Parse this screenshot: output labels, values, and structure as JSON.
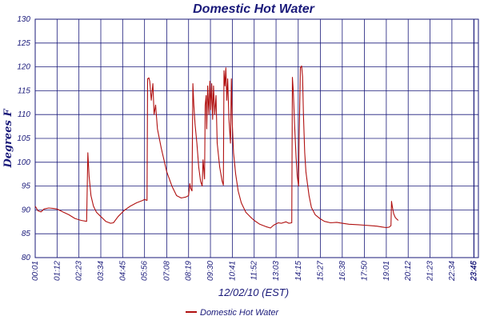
{
  "chart_data": {
    "type": "line",
    "title": "Domestic Hot Water",
    "xlabel": "12/02/10 (EST)",
    "ylabel": "Degrees F",
    "ylim": [
      80,
      130
    ],
    "yticks": [
      80,
      85,
      90,
      95,
      100,
      105,
      110,
      115,
      120,
      125,
      130
    ],
    "xlim_minutes": [
      1,
      1440
    ],
    "xticks": [
      {
        "label": "00:01",
        "m": 1
      },
      {
        "label": "01:12",
        "m": 72
      },
      {
        "label": "02:23",
        "m": 143
      },
      {
        "label": "03:34",
        "m": 214
      },
      {
        "label": "04:45",
        "m": 285
      },
      {
        "label": "05:56",
        "m": 356
      },
      {
        "label": "07:08",
        "m": 428
      },
      {
        "label": "08:19",
        "m": 499
      },
      {
        "label": "09:30",
        "m": 570
      },
      {
        "label": "10:41",
        "m": 641
      },
      {
        "label": "11:52",
        "m": 712
      },
      {
        "label": "13:03",
        "m": 783
      },
      {
        "label": "14:15",
        "m": 855
      },
      {
        "label": "15:27",
        "m": 927
      },
      {
        "label": "16:38",
        "m": 998
      },
      {
        "label": "17:50",
        "m": 1070
      },
      {
        "label": "19:01",
        "m": 1141
      },
      {
        "label": "20:12",
        "m": 1212
      },
      {
        "label": "21:23",
        "m": 1283
      },
      {
        "label": "22:34",
        "m": 1354
      },
      {
        "label": "23:45",
        "m": 1425
      },
      {
        "label": "23:46",
        "m": 1426
      }
    ],
    "grid": true,
    "legend": "bottom-center",
    "series": [
      {
        "name": "Domestic Hot Water",
        "color": "#b01010",
        "points": [
          [
            1,
            90.8
          ],
          [
            10,
            89.8
          ],
          [
            20,
            89.6
          ],
          [
            30,
            90.2
          ],
          [
            45,
            90.4
          ],
          [
            60,
            90.3
          ],
          [
            72,
            90.2
          ],
          [
            90,
            89.6
          ],
          [
            110,
            89.0
          ],
          [
            130,
            88.2
          ],
          [
            150,
            87.8
          ],
          [
            168,
            87.6
          ],
          [
            172,
            102.0
          ],
          [
            176,
            97.0
          ],
          [
            182,
            93.0
          ],
          [
            190,
            90.8
          ],
          [
            200,
            89.5
          ],
          [
            214,
            88.6
          ],
          [
            230,
            87.6
          ],
          [
            246,
            87.2
          ],
          [
            255,
            87.3
          ],
          [
            270,
            88.6
          ],
          [
            290,
            89.9
          ],
          [
            310,
            90.8
          ],
          [
            330,
            91.5
          ],
          [
            350,
            92.0
          ],
          [
            356,
            92.2
          ],
          [
            364,
            92.0
          ],
          [
            366,
            117.5
          ],
          [
            370,
            117.7
          ],
          [
            373,
            117.0
          ],
          [
            378,
            113.0
          ],
          [
            383,
            116.5
          ],
          [
            387,
            110.0
          ],
          [
            392,
            112.0
          ],
          [
            398,
            107.0
          ],
          [
            410,
            103.0
          ],
          [
            428,
            98.0
          ],
          [
            445,
            95.0
          ],
          [
            460,
            93.0
          ],
          [
            475,
            92.5
          ],
          [
            490,
            92.7
          ],
          [
            499,
            93.0
          ],
          [
            503,
            95.5
          ],
          [
            506,
            94.5
          ],
          [
            510,
            94.0
          ],
          [
            513,
            116.5
          ],
          [
            516,
            112.0
          ],
          [
            520,
            108.0
          ],
          [
            526,
            104.0
          ],
          [
            532,
            99.0
          ],
          [
            538,
            96.0
          ],
          [
            543,
            95.0
          ],
          [
            546,
            100.5
          ],
          [
            549,
            98.0
          ],
          [
            551,
            96.5
          ],
          [
            553,
            112.0
          ],
          [
            556,
            114.0
          ],
          [
            558,
            107.0
          ],
          [
            561,
            116.0
          ],
          [
            565,
            110.0
          ],
          [
            568,
            117.0
          ],
          [
            571,
            111.0
          ],
          [
            574,
            116.5
          ],
          [
            577,
            109.0
          ],
          [
            580,
            116.0
          ],
          [
            584,
            110.0
          ],
          [
            588,
            114.0
          ],
          [
            592,
            104.0
          ],
          [
            600,
            99.0
          ],
          [
            608,
            96.0
          ],
          [
            612,
            95.2
          ],
          [
            614,
            119.2
          ],
          [
            617,
            116.0
          ],
          [
            620,
            119.8
          ],
          [
            623,
            113.0
          ],
          [
            626,
            117.5
          ],
          [
            630,
            109.0
          ],
          [
            635,
            104.0
          ],
          [
            638,
            117.5
          ],
          [
            641,
            108.0
          ],
          [
            645,
            102.0
          ],
          [
            652,
            97.5
          ],
          [
            660,
            94.0
          ],
          [
            670,
            91.5
          ],
          [
            685,
            89.5
          ],
          [
            700,
            88.5
          ],
          [
            712,
            87.8
          ],
          [
            730,
            87.0
          ],
          [
            750,
            86.5
          ],
          [
            765,
            86.2
          ],
          [
            775,
            86.8
          ],
          [
            790,
            87.3
          ],
          [
            800,
            87.2
          ],
          [
            815,
            87.5
          ],
          [
            825,
            87.2
          ],
          [
            834,
            87.3
          ],
          [
            836,
            117.8
          ],
          [
            839,
            115.0
          ],
          [
            843,
            108.0
          ],
          [
            848,
            101.0
          ],
          [
            852,
            97.0
          ],
          [
            856,
            95.0
          ],
          [
            858,
            105.0
          ],
          [
            862,
            119.8
          ],
          [
            866,
            120.2
          ],
          [
            869,
            118.0
          ],
          [
            872,
            110.0
          ],
          [
            876,
            102.0
          ],
          [
            880,
            98.0
          ],
          [
            885,
            95.5
          ],
          [
            890,
            93.0
          ],
          [
            898,
            90.5
          ],
          [
            910,
            89.0
          ],
          [
            925,
            88.2
          ],
          [
            940,
            87.6
          ],
          [
            960,
            87.3
          ],
          [
            980,
            87.4
          ],
          [
            998,
            87.2
          ],
          [
            1020,
            87.0
          ],
          [
            1050,
            86.9
          ],
          [
            1070,
            86.8
          ],
          [
            1090,
            86.7
          ],
          [
            1110,
            86.6
          ],
          [
            1130,
            86.4
          ],
          [
            1141,
            86.3
          ],
          [
            1150,
            86.4
          ],
          [
            1156,
            86.7
          ],
          [
            1158,
            91.8
          ],
          [
            1161,
            90.5
          ],
          [
            1165,
            89.2
          ],
          [
            1170,
            88.4
          ],
          [
            1176,
            88.0
          ],
          [
            1180,
            87.8
          ]
        ]
      }
    ]
  }
}
